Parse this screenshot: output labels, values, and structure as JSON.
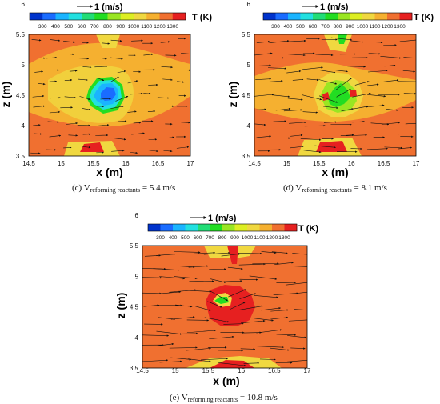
{
  "colors": {
    "arrow": "#111111",
    "frame": "#000000",
    "background": "#ffffff"
  },
  "legend": {
    "reference_vector": "1 (m/s)",
    "variable_label": "T (K)",
    "levels": [
      "300",
      "400",
      "500",
      "600",
      "700",
      "800",
      "900",
      "1000",
      "1100",
      "1200",
      "1300"
    ],
    "colors": [
      "#0033cc",
      "#1a6cff",
      "#1ab4ff",
      "#22e0e0",
      "#22dd77",
      "#22dd22",
      "#99e622",
      "#ddee22",
      "#f0d840",
      "#f5b030",
      "#f07030",
      "#e62020"
    ]
  },
  "axes": {
    "x": {
      "label": "x (m)",
      "ticks": [
        "14.5",
        "15",
        "15.5",
        "16",
        "16.5",
        "17"
      ]
    },
    "z": {
      "label": "z (m)",
      "ticks": [
        "3.5",
        "4",
        "4.5",
        "5",
        "5.5",
        "6"
      ]
    }
  },
  "panels": [
    {
      "id": "c",
      "caption_prefix": "(c) V",
      "caption_sub": "reforming reactants",
      "caption_suffix": " = 5.4 m/s"
    },
    {
      "id": "d",
      "caption_prefix": "(d) V",
      "caption_sub": "reforming reactants",
      "caption_suffix": " = 8.1 m/s"
    },
    {
      "id": "e",
      "caption_prefix": "(e) V",
      "caption_sub": "reforming reactants",
      "caption_suffix": " = 10.8 m/s"
    }
  ]
}
